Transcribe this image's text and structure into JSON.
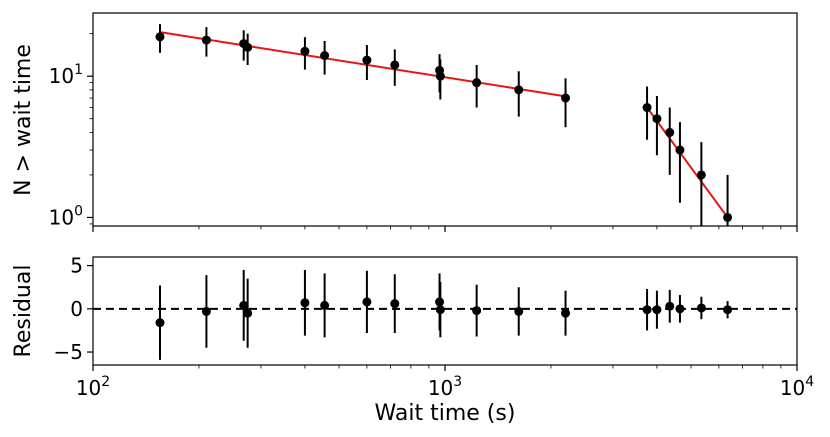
{
  "chart_data": [
    {
      "type": "scatter",
      "panel": "top",
      "xscale": "log",
      "yscale": "log",
      "xlim": [
        100,
        10000
      ],
      "ylim": [
        0.87,
        28
      ],
      "ylabel": "N > wait time",
      "yticks": [
        {
          "value": 1,
          "base": "10",
          "exp": "0"
        },
        {
          "value": 10,
          "base": "10",
          "exp": "1"
        }
      ],
      "colors": {
        "points": "#000000",
        "fit": "#e8140f"
      },
      "series": [
        {
          "x": [
            155,
            210,
            268,
            275,
            400,
            455,
            600,
            720,
            965,
            970,
            1230,
            1620,
            2200,
            3750,
            4000,
            4350,
            4650,
            5350,
            6350
          ],
          "y": [
            19,
            18,
            17,
            16,
            15,
            14,
            13,
            12,
            11,
            10,
            9,
            8,
            7,
            6,
            5,
            4,
            3,
            2,
            1
          ],
          "err_low": [
            4.36,
            4.24,
            4.12,
            4.0,
            3.87,
            3.74,
            3.61,
            3.46,
            3.32,
            3.16,
            3.0,
            2.83,
            2.65,
            2.45,
            2.24,
            2.0,
            1.73,
            1.41,
            1.0
          ],
          "err_high": [
            4.36,
            4.24,
            4.12,
            4.0,
            3.87,
            3.74,
            3.61,
            3.46,
            3.32,
            3.16,
            3.0,
            2.83,
            2.65,
            2.45,
            2.24,
            2.0,
            1.73,
            1.41,
            1.0
          ]
        }
      ],
      "fit_segments": [
        {
          "x": [
            155,
            2200
          ],
          "y": [
            20.5,
            7.2
          ]
        },
        {
          "x": [
            3750,
            6350
          ],
          "y": [
            6.0,
            1.0
          ]
        }
      ]
    },
    {
      "type": "scatter",
      "panel": "bottom",
      "xscale": "log",
      "xlim": [
        100,
        10000
      ],
      "ylim": [
        -6.5,
        6
      ],
      "xlabel": "Wait time (s)",
      "ylabel": "Residual",
      "xticks": [
        {
          "value": 100,
          "base": "10",
          "exp": "2"
        },
        {
          "value": 1000,
          "base": "10",
          "exp": "3"
        },
        {
          "value": 10000,
          "base": "10",
          "exp": "4"
        }
      ],
      "yticks": [
        {
          "value": 5,
          "label": "5"
        },
        {
          "value": 0,
          "label": "0"
        },
        {
          "value": -5,
          "label": "−5"
        }
      ],
      "reference_line": 0,
      "series": [
        {
          "x": [
            155,
            210,
            268,
            275,
            400,
            455,
            600,
            720,
            965,
            970,
            1230,
            1620,
            2200,
            3750,
            4000,
            4350,
            4650,
            5350,
            6350
          ],
          "y": [
            -1.6,
            -0.3,
            0.4,
            -0.5,
            0.7,
            0.4,
            0.8,
            0.6,
            0.8,
            -0.1,
            -0.2,
            -0.3,
            -0.5,
            -0.1,
            -0.1,
            0.3,
            0.0,
            0.1,
            -0.1
          ],
          "err": [
            4.3,
            4.2,
            4.1,
            4.0,
            3.8,
            3.7,
            3.6,
            3.4,
            3.3,
            3.2,
            3.0,
            2.8,
            2.6,
            2.4,
            2.2,
            1.9,
            1.6,
            1.3,
            1.0
          ]
        }
      ]
    }
  ]
}
